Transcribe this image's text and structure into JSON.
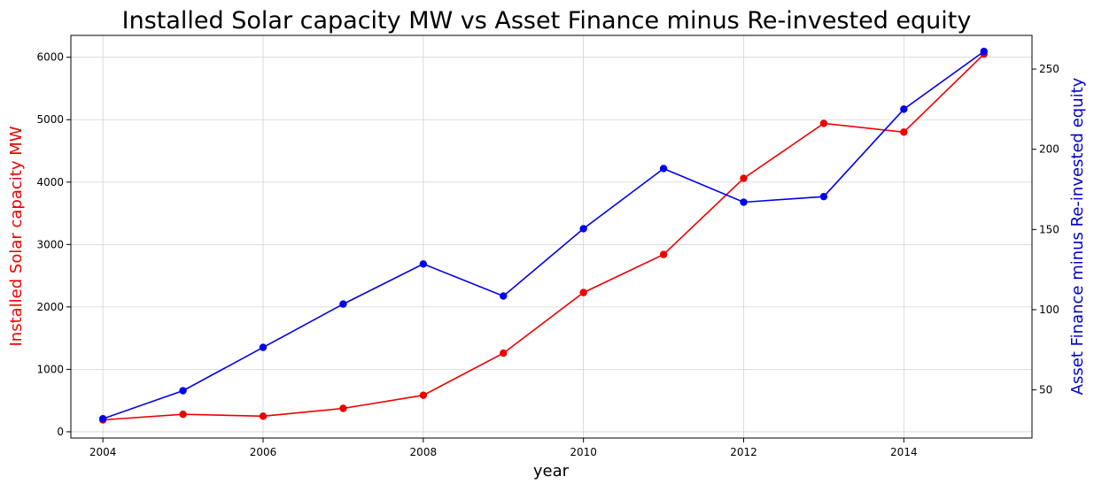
{
  "chart_data": {
    "type": "line",
    "title": "Installed Solar capacity MW vs Asset Finance minus Re-invested equity",
    "xlabel": "year",
    "ylabel_left": "Installed Solar capacity MW",
    "ylabel_right": "Asset Finance minus Re-invested equity",
    "x": [
      2004,
      2005,
      2006,
      2007,
      2008,
      2009,
      2010,
      2011,
      2012,
      2013,
      2014,
      2015
    ],
    "series": [
      {
        "axis": "left",
        "color": "#ee0000",
        "values": [
          190,
          280,
          250,
          375,
          585,
          1260,
          2230,
          2840,
          4060,
          4940,
          4800,
          6050
        ]
      },
      {
        "axis": "right",
        "color": "#0000ee",
        "values": [
          32,
          49.5,
          76.5,
          103.5,
          128.5,
          108.5,
          150.5,
          188,
          167,
          170.5,
          225,
          261
        ]
      }
    ],
    "xlim": [
      2003.6,
      2015.6
    ],
    "ylim_left": [
      -100,
      6350
    ],
    "ylim_right": [
      20,
      271
    ],
    "xticks": [
      "2004",
      "2006",
      "2008",
      "2010",
      "2012",
      "2014"
    ],
    "yticks_left": [
      "0",
      "1000",
      "2000",
      "3000",
      "4000",
      "5000",
      "6000"
    ],
    "yticks_right": [
      "50",
      "100",
      "150",
      "200",
      "250"
    ],
    "grid": true,
    "left_label_color": "#ee0000",
    "right_label_color": "#0000cc"
  }
}
